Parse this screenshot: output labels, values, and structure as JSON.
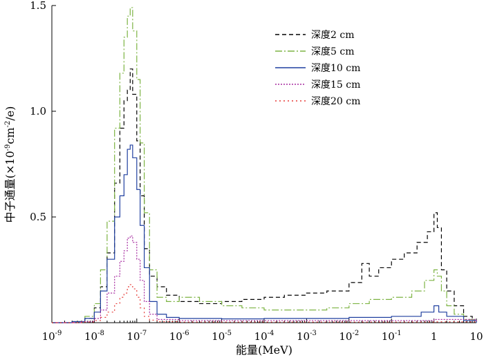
{
  "chart_data": {
    "type": "line",
    "title": "",
    "xlabel": "能量(MeV)",
    "ylabel_parts": {
      "a": "中子通量(×10",
      "b": "-9",
      "c": "cm",
      "d": "-2",
      "e": "/e)"
    },
    "x_scale": "log",
    "xlim": [
      1e-09,
      10
    ],
    "ylim": [
      0,
      1.5
    ],
    "x_ticks": [
      {
        "value": 1e-09,
        "base": "10",
        "exp": "-9"
      },
      {
        "value": 1e-08,
        "base": "10",
        "exp": "-8"
      },
      {
        "value": 1e-07,
        "base": "10",
        "exp": "-7"
      },
      {
        "value": 1e-06,
        "base": "10",
        "exp": "-6"
      },
      {
        "value": 1e-05,
        "base": "10",
        "exp": "-5"
      },
      {
        "value": 0.0001,
        "base": "10",
        "exp": "-4"
      },
      {
        "value": 0.001,
        "base": "10",
        "exp": "-3"
      },
      {
        "value": 0.01,
        "base": "10",
        "exp": "-2"
      },
      {
        "value": 0.1,
        "base": "10",
        "exp": "-1"
      },
      {
        "value": 1,
        "base": "1",
        "exp": ""
      },
      {
        "value": 10,
        "base": "10",
        "exp": ""
      }
    ],
    "y_ticks": [
      {
        "value": 0.5,
        "label": "0.5"
      },
      {
        "value": 1.0,
        "label": "1.0"
      },
      {
        "value": 1.5,
        "label": "1.5"
      }
    ],
    "grid": false,
    "legend_position": "top-right",
    "series": [
      {
        "name": "深度2 cm",
        "color": "#000000",
        "dash": "6,4",
        "points": [
          [
            1e-09,
            0
          ],
          [
            3e-09,
            0.005
          ],
          [
            6e-09,
            0.02
          ],
          [
            1e-08,
            0.07
          ],
          [
            1.4e-08,
            0.17
          ],
          [
            2e-08,
            0.33
          ],
          [
            3e-08,
            0.66
          ],
          [
            4e-08,
            0.92
          ],
          [
            5e-08,
            1.05
          ],
          [
            6e-08,
            1.1
          ],
          [
            7e-08,
            1.2
          ],
          [
            8e-08,
            1.08
          ],
          [
            1e-07,
            0.86
          ],
          [
            1.2e-07,
            0.6
          ],
          [
            1.5e-07,
            0.35
          ],
          [
            2e-07,
            0.22
          ],
          [
            3e-07,
            0.17
          ],
          [
            5e-07,
            0.13
          ],
          [
            1e-06,
            0.1
          ],
          [
            3e-06,
            0.09
          ],
          [
            1e-05,
            0.1
          ],
          [
            3e-05,
            0.11
          ],
          [
            0.0001,
            0.12
          ],
          [
            0.0003,
            0.13
          ],
          [
            0.001,
            0.14
          ],
          [
            0.003,
            0.15
          ],
          [
            0.01,
            0.19
          ],
          [
            0.02,
            0.28
          ],
          [
            0.03,
            0.22
          ],
          [
            0.05,
            0.26
          ],
          [
            0.1,
            0.3
          ],
          [
            0.2,
            0.33
          ],
          [
            0.4,
            0.38
          ],
          [
            0.7,
            0.43
          ],
          [
            1,
            0.52
          ],
          [
            1.2,
            0.45
          ],
          [
            1.5,
            0.25
          ],
          [
            2,
            0.15
          ],
          [
            3,
            0.08
          ],
          [
            5,
            0.03
          ],
          [
            8,
            0.01
          ],
          [
            10,
            0
          ]
        ]
      },
      {
        "name": "深度5 cm",
        "color": "#7cb342",
        "dash": "10,3,2,3",
        "points": [
          [
            1e-09,
            0
          ],
          [
            3e-09,
            0.005
          ],
          [
            6e-09,
            0.03
          ],
          [
            1e-08,
            0.09
          ],
          [
            1.4e-08,
            0.25
          ],
          [
            2e-08,
            0.48
          ],
          [
            3e-08,
            0.92
          ],
          [
            4e-08,
            1.18
          ],
          [
            5e-08,
            1.35
          ],
          [
            6e-08,
            1.45
          ],
          [
            7e-08,
            1.49
          ],
          [
            8e-08,
            1.38
          ],
          [
            1e-07,
            1.15
          ],
          [
            1.2e-07,
            0.85
          ],
          [
            1.5e-07,
            0.52
          ],
          [
            2e-07,
            0.25
          ],
          [
            3e-07,
            0.12
          ],
          [
            5e-07,
            0.1
          ],
          [
            1e-06,
            0.12
          ],
          [
            3e-06,
            0.1
          ],
          [
            1e-05,
            0.08
          ],
          [
            3e-05,
            0.07
          ],
          [
            0.0001,
            0.06
          ],
          [
            0.0003,
            0.06
          ],
          [
            0.001,
            0.06
          ],
          [
            0.003,
            0.07
          ],
          [
            0.01,
            0.09
          ],
          [
            0.03,
            0.11
          ],
          [
            0.1,
            0.12
          ],
          [
            0.3,
            0.15
          ],
          [
            0.6,
            0.2
          ],
          [
            1,
            0.25
          ],
          [
            1.2,
            0.22
          ],
          [
            1.5,
            0.15
          ],
          [
            2,
            0.08
          ],
          [
            3,
            0.04
          ],
          [
            5,
            0.015
          ],
          [
            10,
            0
          ]
        ]
      },
      {
        "name": "深度10 cm",
        "color": "#1f3f9f",
        "dash": "",
        "points": [
          [
            1e-09,
            0
          ],
          [
            3e-09,
            0.005
          ],
          [
            6e-09,
            0.02
          ],
          [
            1e-08,
            0.05
          ],
          [
            1.4e-08,
            0.15
          ],
          [
            2e-08,
            0.3
          ],
          [
            3e-08,
            0.5
          ],
          [
            4e-08,
            0.6
          ],
          [
            5e-08,
            0.7
          ],
          [
            6e-08,
            0.82
          ],
          [
            7e-08,
            0.84
          ],
          [
            8e-08,
            0.78
          ],
          [
            1e-07,
            0.63
          ],
          [
            1.2e-07,
            0.46
          ],
          [
            1.5e-07,
            0.26
          ],
          [
            2e-07,
            0.1
          ],
          [
            3e-07,
            0.04
          ],
          [
            5e-07,
            0.025
          ],
          [
            1e-06,
            0.02
          ],
          [
            1e-05,
            0.018
          ],
          [
            0.0001,
            0.02
          ],
          [
            0.001,
            0.02
          ],
          [
            0.01,
            0.025
          ],
          [
            0.1,
            0.03
          ],
          [
            0.5,
            0.05
          ],
          [
            1,
            0.08
          ],
          [
            1.3,
            0.05
          ],
          [
            2,
            0.03
          ],
          [
            5,
            0.01
          ],
          [
            10,
            0
          ]
        ]
      },
      {
        "name": "深度15 cm",
        "color": "#a5289f",
        "dash": "2,2",
        "points": [
          [
            1e-09,
            0
          ],
          [
            5e-09,
            0.005
          ],
          [
            1e-08,
            0.02
          ],
          [
            1.4e-08,
            0.06
          ],
          [
            2e-08,
            0.14
          ],
          [
            3e-08,
            0.22
          ],
          [
            4e-08,
            0.29
          ],
          [
            5e-08,
            0.34
          ],
          [
            6e-08,
            0.4
          ],
          [
            7e-08,
            0.41
          ],
          [
            8e-08,
            0.38
          ],
          [
            1e-07,
            0.3
          ],
          [
            1.2e-07,
            0.2
          ],
          [
            1.5e-07,
            0.1
          ],
          [
            2e-07,
            0.04
          ],
          [
            3e-07,
            0.015
          ],
          [
            1e-06,
            0.01
          ],
          [
            0.0001,
            0.01
          ],
          [
            0.01,
            0.01
          ],
          [
            1,
            0.015
          ],
          [
            10,
            0
          ]
        ]
      },
      {
        "name": "深度20 cm",
        "color": "#e53935",
        "dash": "2,4",
        "points": [
          [
            1e-09,
            0
          ],
          [
            5e-09,
            0.003
          ],
          [
            1e-08,
            0.01
          ],
          [
            1.4e-08,
            0.025
          ],
          [
            2e-08,
            0.05
          ],
          [
            3e-08,
            0.09
          ],
          [
            4e-08,
            0.12
          ],
          [
            5e-08,
            0.14
          ],
          [
            6e-08,
            0.17
          ],
          [
            7e-08,
            0.18
          ],
          [
            8e-08,
            0.16
          ],
          [
            1e-07,
            0.12
          ],
          [
            1.2e-07,
            0.07
          ],
          [
            1.5e-07,
            0.03
          ],
          [
            2e-07,
            0.012
          ],
          [
            3e-07,
            0.005
          ],
          [
            1e-06,
            0.003
          ],
          [
            0.0001,
            0.003
          ],
          [
            0.01,
            0.003
          ],
          [
            1,
            0.004
          ],
          [
            10,
            0
          ]
        ]
      }
    ]
  }
}
